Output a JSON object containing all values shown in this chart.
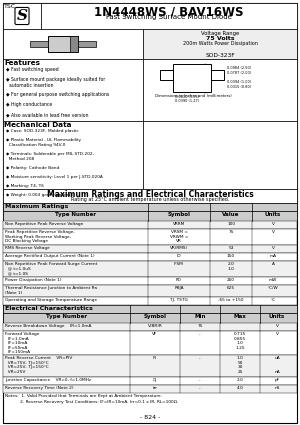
{
  "title": "1N4448WS / BAV16WS",
  "subtitle": "Fast Switching Surface Mount Diode",
  "voltage_range": "Voltage Range",
  "voltage_value": "75 Volts",
  "power_diss": "200m Watts Power Dissipation",
  "package": "SOD-323F",
  "features_title": "Features",
  "features": [
    "Fast switching speed",
    "Surface mount package ideally suited for\n  automatic insertion",
    "For general purpose switching applications",
    "High conductance",
    "Also available in lead free version"
  ],
  "mech_title": "Mechanical Data",
  "mech_items": [
    "Case: SOD-323F, Molded plastic",
    "Plastic Material - UL Flammability\n  Classification Rating 94V-0",
    "Terminals: Solderable per MIL-STD-202,\n  Method 208",
    "Polarity: Cathode Band",
    "Moisture sensitivity: Level 1 per J-STD-020A",
    "Marking: T4, T6",
    "Weight: 0.004 gram (approx.)"
  ],
  "max_ratings_title": "Maximum Ratings and Electrical Characteristics",
  "max_ratings_subtitle": "Rating at 25°C ambient temperature unless otherwise specified.",
  "max_ratings_section": "Maximum Ratings",
  "max_ratings_headers": [
    "Type Number",
    "Symbol",
    "Value",
    "Units"
  ],
  "max_ratings_rows": [
    [
      "Non Repetitive Peak Reverse Voltage",
      "VRRM",
      "100",
      "V"
    ],
    [
      "Peak Repetitive Reverse Voltage,\nWorking Peak Reverse Voltage,\nDC Blocking Voltage",
      "VRSM =\nVRWM =\nVR",
      "75",
      "V"
    ],
    [
      "RMS Reverse Voltage",
      "VR(RMS)",
      "53",
      "V"
    ],
    [
      "Average Rectified Output Current (Note 1)",
      "IO",
      "150",
      "mA"
    ],
    [
      "Non Repetitive Peak Forward Surge Current\n  @ t=1.0uS\n  @ t=1.0S",
      "IFSM",
      "2.0\n1.0",
      "A"
    ],
    [
      "Power Dissipation (Note 1)",
      "PD",
      "200",
      "mW"
    ],
    [
      "Thermal Resistance Junction to Ambient Ra\n(Note 1)",
      "RθJA",
      "625",
      "°C/W"
    ],
    [
      "Operating and Storage Temperature Range",
      "TJ, TSTG",
      "-65 to +150",
      "°C"
    ]
  ],
  "elec_char_section": "Electrical Characteristics",
  "elec_char_headers": [
    "Type Number",
    "Symbol",
    "Min",
    "Max",
    "Units"
  ],
  "elec_char_rows": [
    [
      "Reverse Breakdown Voltage    IR=1.0mA",
      "V(BR)R",
      "75",
      "",
      "V"
    ],
    [
      "Forward Voltage\n  IF=1.0mA\n  IF=10mA\n  IF=50mA\n  IF=150mA",
      "VF",
      "-",
      "0.715\n0.855\n1.0\n1.25",
      "V"
    ],
    [
      "Peak Reverse Current    VR=PIV\n  VR=75V, TJ=150°C\n  VR=25V, TJ=150°C\n  VR=25V",
      "IR",
      "-",
      "1.0\n50\n30\n25",
      "uA\n\n\nnA"
    ],
    [
      "Junction Capacitance    VR=0, f=1.0MHz",
      "CJ",
      "-",
      "2.0",
      "pF"
    ],
    [
      "Reverse Recovery Time (Note 2)",
      "trr",
      "-",
      "4.0",
      "nS"
    ]
  ],
  "notes": [
    "Notes:  1. Valid Provided that Terminals are Kept at Ambient Temperature.",
    "           2. Reverse Recovery Test Conditions: IF=IR=10mA, Irr=0.1 x IR, RL=100Ω."
  ],
  "page_num": "- 824 -",
  "bg_color": "#ffffff"
}
